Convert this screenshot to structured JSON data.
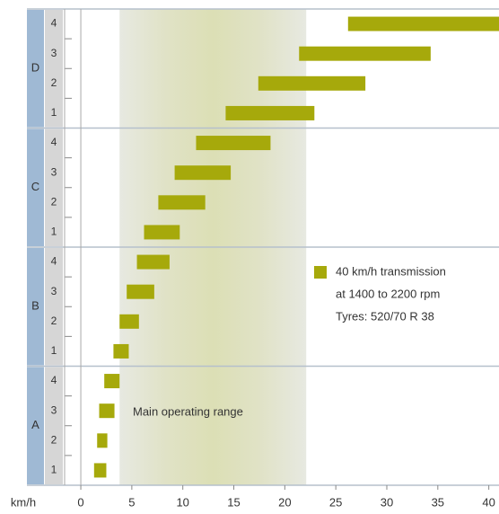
{
  "chart_data": {
    "type": "range-bar",
    "x_label": "km/h",
    "xlim": [
      -1.5,
      41
    ],
    "xticks": [
      0,
      5,
      10,
      15,
      20,
      25,
      30,
      35,
      40
    ],
    "groups": [
      {
        "name": "A",
        "gears": [
          "1",
          "2",
          "3",
          "4"
        ]
      },
      {
        "name": "B",
        "gears": [
          "1",
          "2",
          "3",
          "4"
        ]
      },
      {
        "name": "C",
        "gears": [
          "1",
          "2",
          "3",
          "4"
        ]
      },
      {
        "name": "D",
        "gears": [
          "1",
          "2",
          "3",
          "4"
        ]
      }
    ],
    "series": [
      {
        "name": "40 km/h transmission",
        "color": "#a6a90b",
        "values": [
          [
            1.3,
            2.5
          ],
          [
            1.6,
            2.6
          ],
          [
            1.8,
            3.3
          ],
          [
            2.3,
            3.8
          ],
          [
            3.2,
            4.7
          ],
          [
            3.8,
            5.7
          ],
          [
            4.5,
            7.2
          ],
          [
            5.5,
            8.7
          ],
          [
            6.2,
            9.7
          ],
          [
            7.6,
            12.2
          ],
          [
            9.2,
            14.7
          ],
          [
            11.3,
            18.6
          ],
          [
            14.2,
            22.9
          ],
          [
            17.4,
            27.9
          ],
          [
            21.4,
            34.3
          ],
          [
            26.2,
            41
          ]
        ]
      }
    ],
    "annotations": [
      "at 1400 to 2200 rpm",
      "Tyres: 520/70 R 38"
    ],
    "operating_range": {
      "label": "Main operating range",
      "range": [
        3.8,
        22.1
      ]
    }
  }
}
